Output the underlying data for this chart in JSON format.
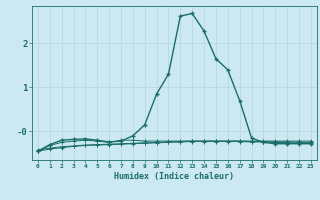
{
  "xlabel": "Humidex (Indice chaleur)",
  "ylabel": "",
  "bg_color": "#cce8f0",
  "grid_color": "#b8d8e2",
  "line_color": "#1a6e6a",
  "xlim": [
    -0.5,
    23.5
  ],
  "ylim": [
    -0.65,
    2.85
  ],
  "xticks": [
    0,
    1,
    2,
    3,
    4,
    5,
    6,
    7,
    8,
    9,
    10,
    11,
    12,
    13,
    14,
    15,
    16,
    17,
    18,
    19,
    20,
    21,
    22,
    23
  ],
  "yticks": [
    0.0,
    1.0,
    2.0
  ],
  "ytick_labels": [
    "-0",
    "1",
    "2"
  ],
  "series1_x": [
    0,
    1,
    2,
    3,
    4,
    5,
    6,
    7,
    8,
    9,
    10,
    11,
    12,
    13,
    14,
    15,
    16,
    17,
    18,
    19,
    20,
    21,
    22,
    23
  ],
  "series1_y": [
    -0.42,
    -0.38,
    -0.35,
    -0.33,
    -0.31,
    -0.3,
    -0.29,
    -0.28,
    -0.27,
    -0.26,
    -0.25,
    -0.24,
    -0.23,
    -0.22,
    -0.22,
    -0.22,
    -0.22,
    -0.22,
    -0.23,
    -0.23,
    -0.24,
    -0.24,
    -0.25,
    -0.25
  ],
  "series2_x": [
    0,
    1,
    2,
    3,
    4,
    5,
    6,
    7,
    8,
    9,
    10,
    11,
    12,
    13,
    14,
    15,
    16,
    17,
    18,
    19,
    20,
    21,
    22,
    23
  ],
  "series2_y": [
    -0.45,
    -0.4,
    -0.37,
    -0.34,
    -0.32,
    -0.31,
    -0.3,
    -0.29,
    -0.28,
    -0.27,
    -0.26,
    -0.25,
    -0.24,
    -0.23,
    -0.23,
    -0.23,
    -0.23,
    -0.23,
    -0.24,
    -0.24,
    -0.25,
    -0.26,
    -0.27,
    -0.27
  ],
  "series3_x": [
    0,
    1,
    2,
    3,
    4,
    5,
    6,
    7,
    8,
    9,
    10,
    11,
    12,
    13,
    14,
    15,
    16,
    17,
    18,
    19,
    20,
    21,
    22,
    23
  ],
  "series3_y": [
    -0.45,
    -0.32,
    -0.25,
    -0.22,
    -0.2,
    -0.22,
    -0.25,
    -0.2,
    -0.2,
    -0.22,
    -0.22,
    -0.22,
    -0.22,
    -0.22,
    -0.22,
    -0.22,
    -0.22,
    -0.22,
    -0.22,
    -0.22,
    -0.22,
    -0.22,
    -0.22,
    -0.22
  ],
  "series4_x": [
    0,
    1,
    2,
    3,
    4,
    5,
    6,
    7,
    8,
    9,
    10,
    11,
    12,
    13,
    14,
    15,
    16,
    17,
    18,
    19,
    20,
    21,
    22,
    23
  ],
  "series4_y": [
    -0.45,
    -0.3,
    -0.2,
    -0.18,
    -0.17,
    -0.2,
    -0.24,
    -0.22,
    -0.1,
    0.15,
    0.85,
    1.3,
    2.62,
    2.68,
    2.28,
    1.65,
    1.4,
    0.7,
    -0.15,
    -0.25,
    -0.28,
    -0.28,
    -0.28,
    -0.28
  ]
}
